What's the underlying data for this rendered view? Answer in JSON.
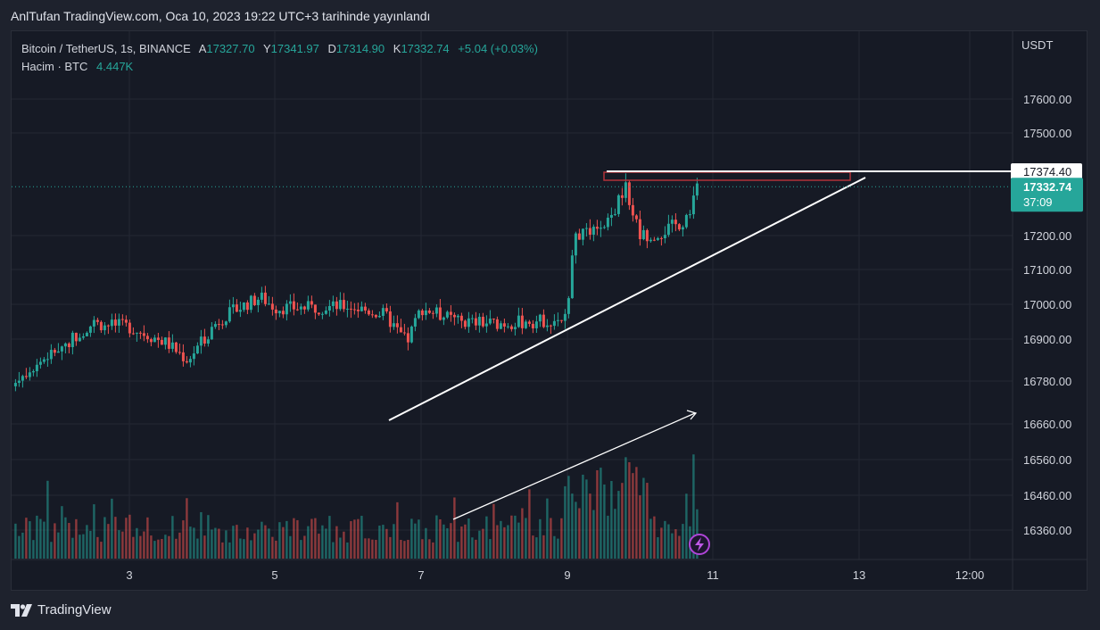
{
  "caption": "AnlTufan TradingView.com, Oca 10, 2023 19:22 UTC+3 tarihinde yayınlandı",
  "legend": {
    "symbol": "Bitcoin / TetherUS, 1s, BINANCE",
    "open_label": "A",
    "open": "17327.70",
    "high_label": "Y",
    "high": "17341.97",
    "low_label": "D",
    "low": "17314.90",
    "close_label": "K",
    "close": "17332.74",
    "change": "+5.04 (+0.03%)",
    "volume_label": "Hacim · BTC",
    "volume": "4.447K"
  },
  "axis_unit": "USDT",
  "price_tag": {
    "value": "17332.74",
    "countdown": "37:09"
  },
  "level_tag": "17374.40",
  "brand": "TradingView",
  "colors": {
    "up": "#26a69a",
    "down": "#ef5350",
    "background": "#161a25",
    "text": "#d1d4dc"
  },
  "icons": {
    "brand_logo": "tradingview-logo-icon",
    "alert": "lightning-icon"
  },
  "chart_data": {
    "type": "candlestick",
    "symbol": "Bitcoin / TetherUS",
    "interval": "1s",
    "exchange": "BINANCE",
    "y_ticks": [
      "17600.00",
      "17500.00",
      "17200.00",
      "17100.00",
      "17000.00",
      "16900.00",
      "16780.00",
      "16660.00",
      "16560.00",
      "16460.00",
      "16360.00"
    ],
    "x_ticks": [
      "3",
      "5",
      "7",
      "9",
      "11",
      "13",
      "12:00"
    ],
    "last_price": 17332.74,
    "resistance_level": 17374.4,
    "anchors": [
      {
        "day": 1.0,
        "price": 16725
      },
      {
        "day": 1.6,
        "price": 16810
      },
      {
        "day": 2.0,
        "price": 16870
      },
      {
        "day": 2.5,
        "price": 16945
      },
      {
        "day": 3.0,
        "price": 16935
      },
      {
        "day": 3.5,
        "price": 16890
      },
      {
        "day": 3.8,
        "price": 16840
      },
      {
        "day": 4.2,
        "price": 16950
      },
      {
        "day": 4.5,
        "price": 16990
      },
      {
        "day": 4.8,
        "price": 17020
      },
      {
        "day": 5.0,
        "price": 16990
      },
      {
        "day": 5.5,
        "price": 16990
      },
      {
        "day": 6.0,
        "price": 16995
      },
      {
        "day": 6.5,
        "price": 16970
      },
      {
        "day": 6.8,
        "price": 16890
      },
      {
        "day": 7.0,
        "price": 16990
      },
      {
        "day": 7.5,
        "price": 16950
      },
      {
        "day": 8.0,
        "price": 16945
      },
      {
        "day": 8.5,
        "price": 16950
      },
      {
        "day": 9.0,
        "price": 16960
      },
      {
        "day": 9.1,
        "price": 17200
      },
      {
        "day": 9.5,
        "price": 17210
      },
      {
        "day": 9.8,
        "price": 17330
      },
      {
        "day": 10.0,
        "price": 17200
      },
      {
        "day": 10.3,
        "price": 17210
      },
      {
        "day": 10.6,
        "price": 17240
      },
      {
        "day": 10.8,
        "price": 17332
      }
    ],
    "volume_range": [
      0,
      200
    ]
  }
}
